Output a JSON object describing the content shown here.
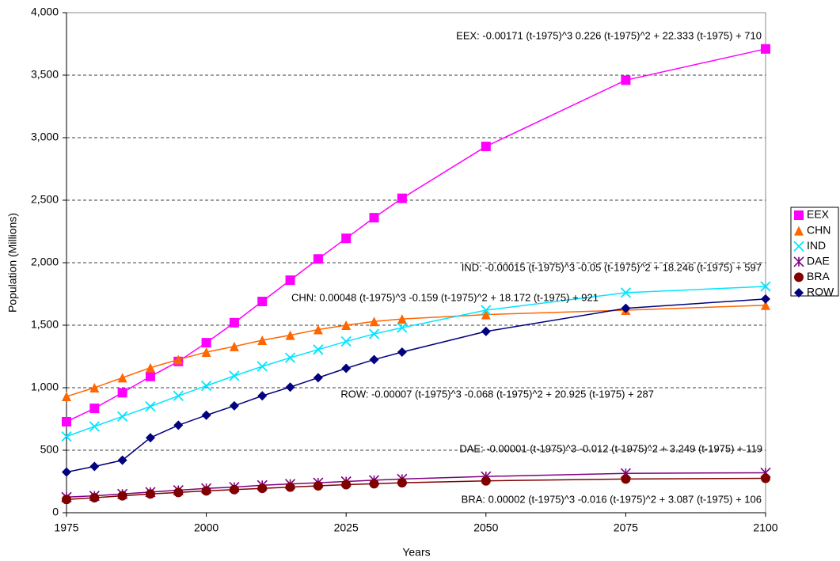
{
  "chart_data": {
    "type": "line",
    "x_label": "Years",
    "y_label": "Population (Millions)",
    "x": [
      1975,
      1980,
      1985,
      1990,
      1995,
      2000,
      2005,
      2010,
      2015,
      2020,
      2025,
      2030,
      2035,
      2050,
      2075,
      2100
    ],
    "xlim": [
      1975,
      2100
    ],
    "xticks": [
      1975,
      2000,
      2025,
      2050,
      2075,
      2100
    ],
    "ylim": [
      0,
      4000
    ],
    "yticks": [
      0,
      500,
      {
        "value": 1000,
        "label": "1,000"
      },
      {
        "value": 1500,
        "label": "1,500"
      },
      {
        "value": 2000,
        "label": "2,000"
      },
      {
        "value": 2500,
        "label": "2,500"
      },
      {
        "value": 3000,
        "label": "3,000"
      },
      {
        "value": 3500,
        "label": "3,500"
      },
      {
        "value": 4000,
        "label": "4,000"
      }
    ],
    "grid": true,
    "legend": "right",
    "series": [
      {
        "name": "EEX",
        "color": "#ff00ff",
        "marker": "square",
        "values": [
          728,
          835,
          960,
          1090,
          1210,
          1360,
          1520,
          1690,
          1860,
          2030,
          2195,
          2360,
          2515,
          2930,
          3460,
          3710
        ]
      },
      {
        "name": "CHN",
        "color": "#ff6600",
        "marker": "triangle",
        "values": [
          930,
          1000,
          1080,
          1160,
          1225,
          1285,
          1330,
          1380,
          1420,
          1465,
          1500,
          1530,
          1550,
          1585,
          1620,
          1660
        ]
      },
      {
        "name": "IND",
        "color": "#00e5ff",
        "marker": "x",
        "values": [
          610,
          690,
          770,
          850,
          935,
          1015,
          1095,
          1170,
          1240,
          1305,
          1370,
          1430,
          1480,
          1620,
          1760,
          1810
        ]
      },
      {
        "name": "DAE",
        "color": "#800080",
        "marker": "star",
        "values": [
          125,
          135,
          150,
          165,
          180,
          195,
          205,
          220,
          230,
          240,
          250,
          260,
          270,
          290,
          315,
          320
        ]
      },
      {
        "name": "BRA",
        "color": "#800000",
        "marker": "circle",
        "values": [
          106,
          120,
          135,
          150,
          162,
          175,
          185,
          195,
          205,
          215,
          225,
          232,
          240,
          255,
          270,
          275
        ]
      },
      {
        "name": "ROW",
        "color": "#000080",
        "marker": "diamond",
        "values": [
          325,
          370,
          420,
          600,
          700,
          780,
          855,
          935,
          1005,
          1080,
          1155,
          1225,
          1285,
          1450,
          1635,
          1710
        ]
      }
    ],
    "annotations": [
      "EEX: -0.00171 (t-1975)^3 0.226 (t-1975)^2 + 22.333 (t-1975) + 710",
      "IND: -0.00015 (t-1975)^3 -0.05 (t-1975)^2 + 18.246 (t-1975) + 597",
      "CHN: 0.00048 (t-1975)^3 -0.159 (t-1975)^2 + 18.172 (t-1975) + 921",
      "ROW: -0.00007 (t-1975)^3 -0.068 (t-1975)^2 + 20.925 (t-1975) + 287",
      "DAE: -0.00001 (t-1975)^3 -0.012 (t-1975)^2 + 3.249 (t-1975) + 119",
      "BRA: 0.00002 (t-1975)^3 -0.016 (t-1975)^2 + 3.087 (t-1975) + 106"
    ]
  }
}
